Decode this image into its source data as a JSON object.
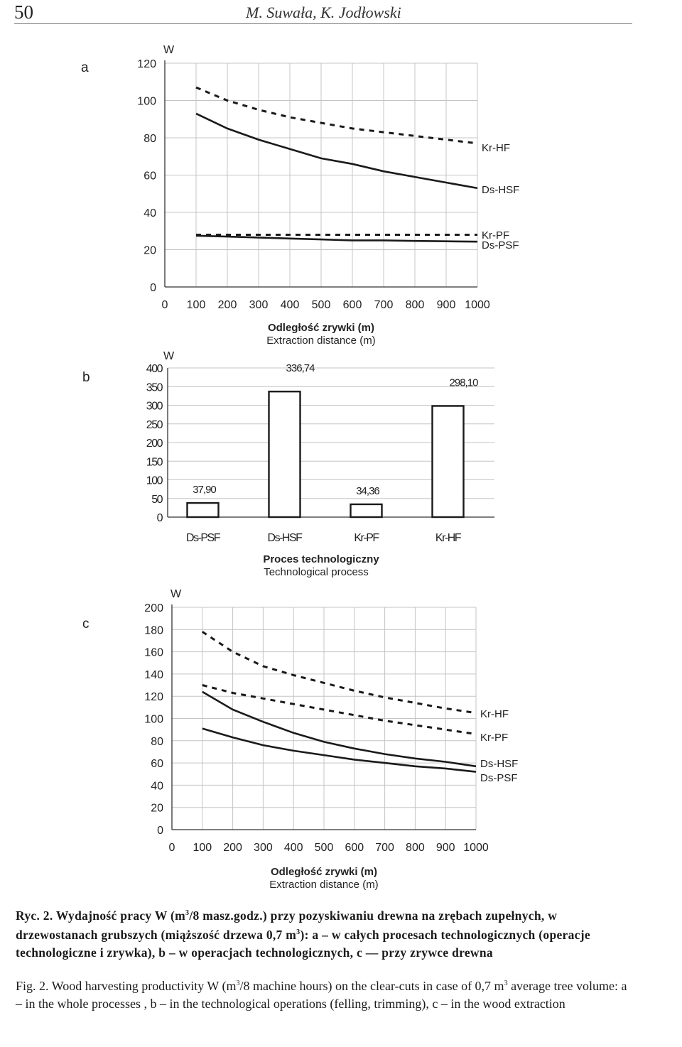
{
  "header": {
    "page_number": "50",
    "authors": "M. Suwała, K. Jodłowski"
  },
  "chart_data": [
    {
      "id": "a",
      "panel_label": "a",
      "type": "line",
      "ylabel": "W",
      "xlabel_pl": "Odległość zrywki (m)",
      "xlabel_en": "Extraction distance (m)",
      "xlim": [
        0,
        1000
      ],
      "ylim": [
        0,
        120
      ],
      "yticks": [
        0,
        20,
        40,
        60,
        80,
        100,
        120
      ],
      "xticks": [
        0,
        100,
        200,
        300,
        400,
        500,
        600,
        700,
        800,
        900,
        1000
      ],
      "grid": true,
      "x": [
        100,
        200,
        300,
        400,
        500,
        600,
        700,
        800,
        900,
        1000
      ],
      "series": [
        {
          "name": "Kr-HF",
          "style": "dashed",
          "values": [
            107,
            100,
            95,
            91,
            88,
            85,
            83,
            81,
            79,
            77
          ]
        },
        {
          "name": "Ds-HSF",
          "style": "solid",
          "values": [
            93,
            85,
            79,
            74,
            69,
            66,
            62,
            59,
            56,
            53
          ]
        },
        {
          "name": "Kr-PF",
          "style": "dashed",
          "values": [
            28,
            28,
            28,
            28,
            28,
            28,
            28,
            28,
            28,
            28
          ]
        },
        {
          "name": "Ds-PSF",
          "style": "solid",
          "values": [
            27.5,
            27,
            26.5,
            26,
            25.5,
            25,
            25,
            24.7,
            24.5,
            24.3
          ]
        }
      ]
    },
    {
      "id": "b",
      "panel_label": "b",
      "type": "bar",
      "ylabel": "W",
      "xlabel_pl": "Proces technologiczny",
      "xlabel_en": "Technological process",
      "ylim": [
        0,
        400
      ],
      "yticks": [
        0,
        50,
        100,
        150,
        200,
        250,
        300,
        350,
        400
      ],
      "grid": true,
      "categories": [
        "Ds-PSF",
        "Ds-HSF",
        "Kr-PF",
        "Kr-HF"
      ],
      "values": [
        37.9,
        336.74,
        34.36,
        298.1
      ],
      "value_labels": [
        "37,90",
        "336,74",
        "34,36",
        "298,10"
      ]
    },
    {
      "id": "c",
      "panel_label": "c",
      "type": "line",
      "ylabel": "W",
      "xlabel_pl": "Odległość zrywki (m)",
      "xlabel_en": "Extraction distance (m)",
      "xlim": [
        0,
        1000
      ],
      "ylim": [
        0,
        200
      ],
      "yticks": [
        0,
        20,
        40,
        60,
        80,
        100,
        120,
        140,
        160,
        180,
        200
      ],
      "xticks": [
        0,
        100,
        200,
        300,
        400,
        500,
        600,
        700,
        800,
        900,
        1000
      ],
      "grid": true,
      "x": [
        100,
        200,
        300,
        400,
        500,
        600,
        700,
        800,
        900,
        1000
      ],
      "series": [
        {
          "name": "Kr-HF",
          "style": "dashed",
          "values": [
            178,
            160,
            147,
            139,
            132,
            125,
            119,
            114,
            109,
            105
          ]
        },
        {
          "name": "Kr-PF",
          "style": "dashed",
          "values": [
            130,
            123,
            118,
            113,
            108,
            103,
            98,
            94,
            90,
            86
          ]
        },
        {
          "name": "Ds-HSF",
          "style": "solid",
          "values": [
            124,
            108,
            97,
            87,
            79,
            73,
            68,
            64,
            61,
            57
          ]
        },
        {
          "name": "Ds-PSF",
          "style": "solid",
          "values": [
            91,
            83,
            76,
            71,
            67,
            63,
            60,
            57,
            55,
            52
          ]
        }
      ]
    }
  ],
  "caption": {
    "pl_1": "Ryc. 2. Wydajność pracy W (m",
    "pl_sup1": "3",
    "pl_2": "/8 masz.godz.) przy pozyskiwaniu drewna na zrębach zupełnych, w drzewostanach grubszych (miąższość drzewa 0,7 m",
    "pl_sup2": "3",
    "pl_3": "): a – w całych procesach technologicznych (operacje technologiczne i zrywka), b – w operacjach technologicznych, c — przy zrywce drewna",
    "en_1": "Fig. 2. Wood harvesting productivity W (m",
    "en_sup1": "3",
    "en_2": "/8 machine hours) on the clear-cuts in case of 0,7 m",
    "en_sup2": "3",
    "en_3": " average tree volume: a – in the whole processes , b – in the technological operations (felling, trimming), c – in the wood extraction"
  }
}
